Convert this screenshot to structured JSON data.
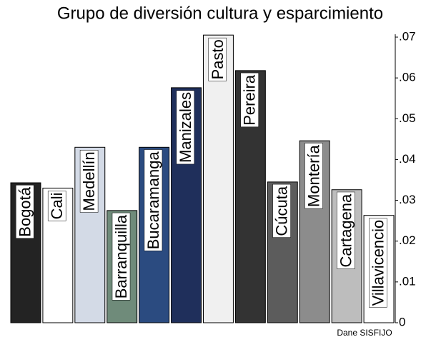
{
  "chart_data": {
    "type": "bar",
    "title": "Grupo de diversión cultura y esparcimiento",
    "source": "Dane SISFIJO",
    "categories": [
      "Bogotá",
      "Cali",
      "Medellín",
      "Barranquilla",
      "Bucaramanga",
      "Manizales",
      "Pasto",
      "Pereira",
      "Cúcuta",
      "Montería",
      "Cartagena",
      "Villavicencio"
    ],
    "values": [
      0.0343,
      0.033,
      0.043,
      0.0275,
      0.043,
      0.0576,
      0.0705,
      0.0618,
      0.0345,
      0.0446,
      0.0326,
      0.0263
    ],
    "colors": [
      "#232323",
      "#ffffff",
      "#d3dae6",
      "#6f8b7a",
      "#2b4b80",
      "#1f2f5b",
      "#f0f0f0",
      "#333333",
      "#5c5c5c",
      "#8c8c8c",
      "#bdbdbd",
      "#ffffff"
    ],
    "ylim": [
      0,
      0.07
    ],
    "yticks": [
      0,
      {
        "value": 0.01,
        "label": ".01"
      },
      {
        "value": 0.02,
        "label": ".02"
      },
      {
        "value": 0.03,
        "label": ".03"
      },
      {
        "value": 0.04,
        "label": ".04"
      },
      {
        "value": 0.05,
        "label": ".05"
      },
      {
        "value": 0.06,
        "label": ".06"
      },
      {
        "value": 0.07,
        "label": ".07"
      }
    ],
    "yaxis_side": "right"
  }
}
